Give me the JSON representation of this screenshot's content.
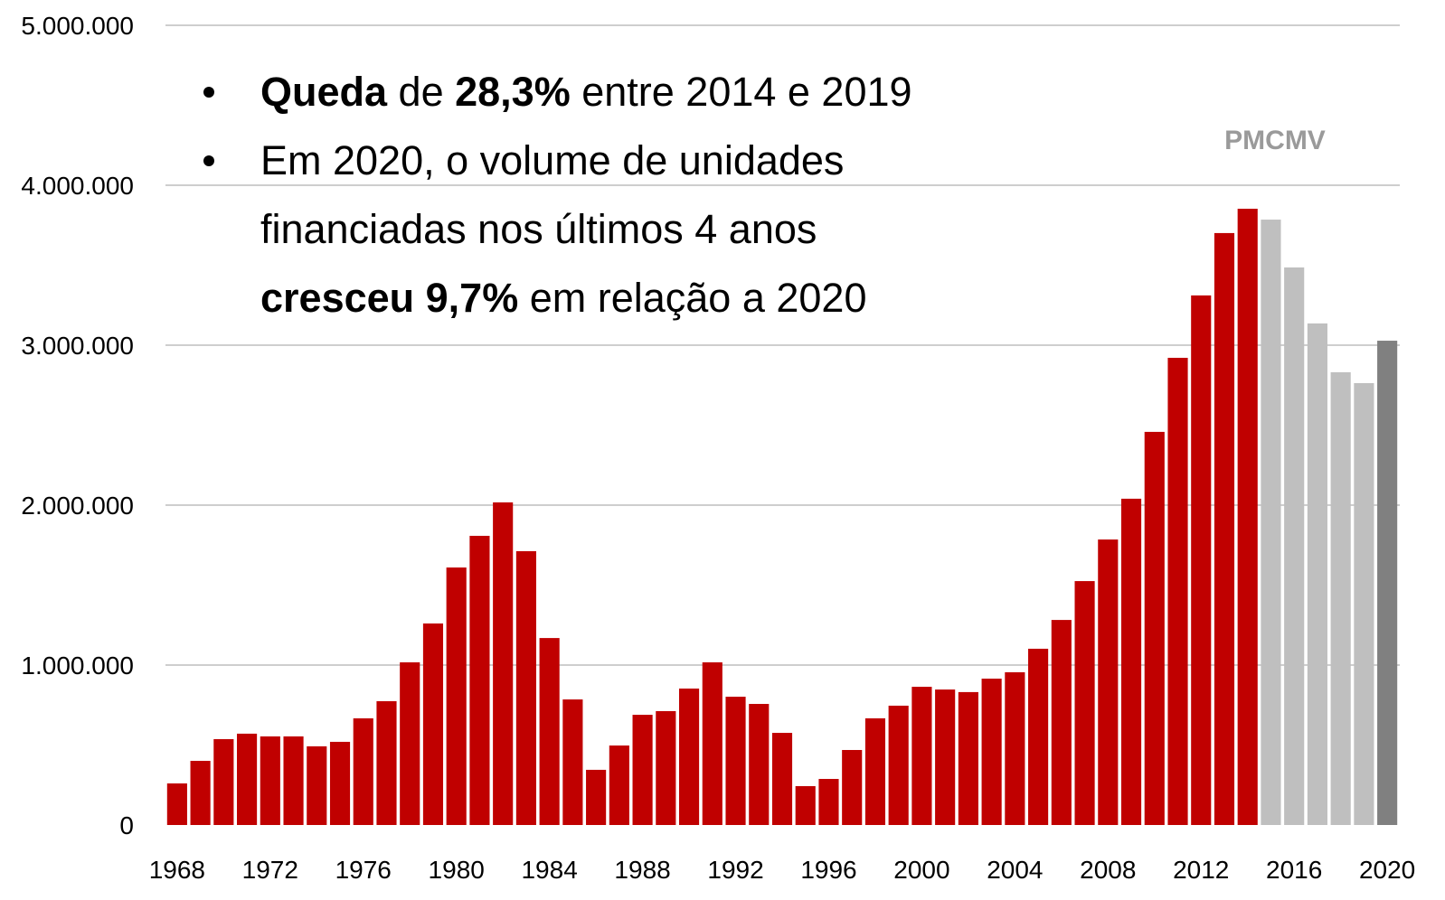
{
  "chart_data": {
    "type": "bar",
    "categories": [
      "1968",
      null,
      null,
      null,
      "1972",
      null,
      null,
      null,
      "1976",
      null,
      null,
      null,
      "1980",
      null,
      null,
      null,
      "1984",
      null,
      null,
      null,
      "1988",
      null,
      null,
      null,
      "1992",
      null,
      null,
      null,
      "1996",
      null,
      null,
      null,
      "2000",
      null,
      null,
      null,
      "2004",
      null,
      null,
      null,
      "2008",
      null,
      null,
      null,
      "2012",
      null,
      null,
      null,
      "2016",
      null,
      null,
      null,
      "2020"
    ],
    "values": [
      260000,
      401000,
      537000,
      571000,
      554000,
      554000,
      492000,
      520000,
      667000,
      774000,
      1017000,
      1260000,
      1610000,
      1808000,
      2017000,
      1712000,
      1169000,
      785000,
      345000,
      497000,
      689000,
      712000,
      853000,
      1017000,
      802000,
      757000,
      576000,
      243000,
      288000,
      469000,
      667000,
      746000,
      864000,
      847000,
      831000,
      915000,
      955000,
      1102000,
      1282000,
      1525000,
      1785000,
      2040000,
      2458000,
      2921000,
      3311000,
      3701000,
      3853000,
      3785000,
      3486000,
      3136000,
      2831000,
      2763000,
      3028000
    ],
    "colors": [
      "#c00000",
      "#c00000",
      "#c00000",
      "#c00000",
      "#c00000",
      "#c00000",
      "#c00000",
      "#c00000",
      "#c00000",
      "#c00000",
      "#c00000",
      "#c00000",
      "#c00000",
      "#c00000",
      "#c00000",
      "#c00000",
      "#c00000",
      "#c00000",
      "#c00000",
      "#c00000",
      "#c00000",
      "#c00000",
      "#c00000",
      "#c00000",
      "#c00000",
      "#c00000",
      "#c00000",
      "#c00000",
      "#c00000",
      "#c00000",
      "#c00000",
      "#c00000",
      "#c00000",
      "#c00000",
      "#c00000",
      "#c00000",
      "#c00000",
      "#c00000",
      "#c00000",
      "#c00000",
      "#c00000",
      "#c00000",
      "#c00000",
      "#c00000",
      "#c00000",
      "#c00000",
      "#c00000",
      "#bfbfbf",
      "#bfbfbf",
      "#bfbfbf",
      "#bfbfbf",
      "#bfbfbf",
      "#808080"
    ],
    "ylim": [
      0,
      5000000
    ],
    "yticks": [
      0,
      {
        "value": 1000000,
        "label": "1.000.000"
      },
      {
        "value": 2000000,
        "label": "2.000.000"
      },
      {
        "value": 3000000,
        "label": "3.000.000"
      },
      {
        "value": 4000000,
        "label": "4.000.000"
      },
      {
        "value": 5000000,
        "label": "5.000.000"
      }
    ],
    "grid": true,
    "note": "PMCMV",
    "annotations": [
      {
        "lines": [
          [
            {
              "text": "Queda",
              "bold": true
            },
            {
              "text": " de ",
              "bold": false
            },
            {
              "text": "28,3%",
              "bold": true
            },
            {
              "text": " entre 2014 e 2019",
              "bold": false
            }
          ]
        ]
      },
      {
        "lines": [
          [
            {
              "text": "Em 2020, o volume de unidades",
              "bold": false
            }
          ],
          [
            {
              "text": "financiadas nos últimos 4 anos",
              "bold": false
            }
          ],
          [
            {
              "text": "cresceu 9,7%",
              "bold": true
            },
            {
              "text": " em relação a 2020",
              "bold": false
            }
          ]
        ]
      }
    ]
  }
}
